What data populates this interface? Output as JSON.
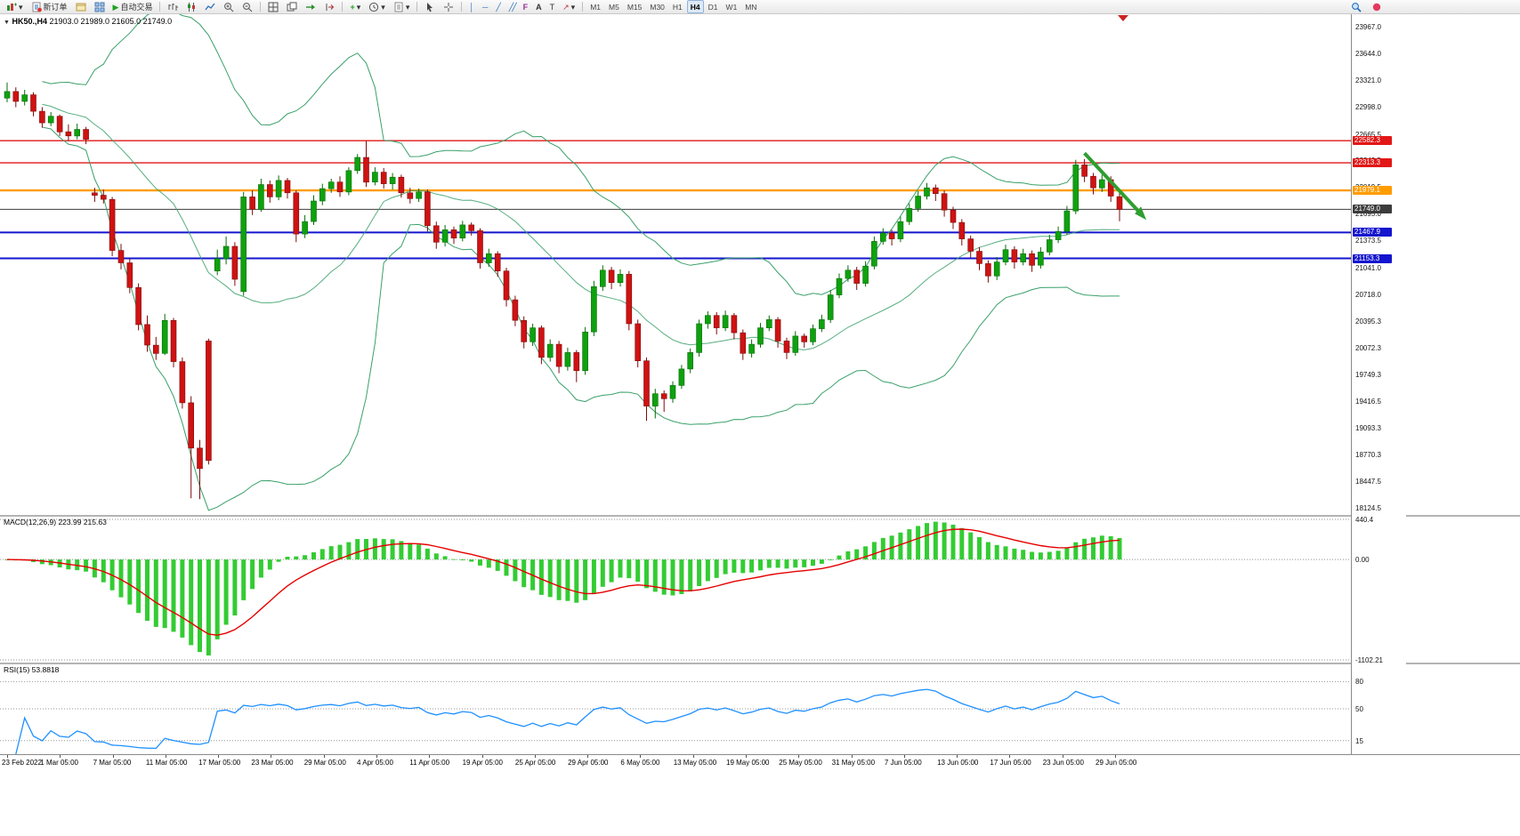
{
  "toolbar": {
    "new_order_label": "新订单",
    "auto_trading_label": "自动交易",
    "timeframes": [
      "M1",
      "M5",
      "M15",
      "M30",
      "H1",
      "H4",
      "D1",
      "W1",
      "MN"
    ],
    "active_timeframe": "H4",
    "icons": [
      "new-chart",
      "dropdown",
      "new-order",
      "profiles",
      "charts",
      "auto-trading",
      "bar-chart",
      "candlestick-chart",
      "line-chart",
      "zoom-in",
      "zoom-out",
      "tile-windows",
      "cascade-windows",
      "auto-scroll",
      "chart-shift",
      "indicators",
      "periods",
      "templates",
      "cursor",
      "crosshair",
      "vertical-line",
      "horizontal-line",
      "trendline",
      "channel",
      "fibonacci",
      "text",
      "label",
      "arrows",
      "search",
      "record"
    ]
  },
  "chart": {
    "header": {
      "symbol_period": "HK50.,H4",
      "ohlc": "21903.0 21989.0 21605.0 21749.0"
    },
    "price_axis_labels": [
      "23967.0",
      "23644.0",
      "23321.0",
      "22998.0",
      "22665.5",
      "22342.5",
      "22019.5",
      "21695.0",
      "21373.5",
      "21041.0",
      "20718.0",
      "20395.3",
      "20072.3",
      "19749.3",
      "19416.5",
      "19093.3",
      "18770.3",
      "18447.5",
      "18124.5"
    ],
    "levels": [
      {
        "price": 22582.3,
        "label": "22582.3",
        "color": "#e21717",
        "width": 1.4
      },
      {
        "price": 22313.3,
        "label": "22313.3",
        "color": "#e21717",
        "width": 1.4
      },
      {
        "price": 21979.1,
        "label": "21979.1",
        "color": "#ff9c00",
        "width": 2.4
      },
      {
        "price": 21749.0,
        "label": "21749.0",
        "color": "#3c3c3c",
        "width": 1
      },
      {
        "price": 21467.9,
        "label": "21467.9",
        "color": "#1515cf",
        "width": 2
      },
      {
        "price": 21153.3,
        "label": "21153.3",
        "color": "#1515cf",
        "width": 2
      }
    ],
    "time_axis_labels": [
      "23 Feb 2022",
      "1 Mar 05:00",
      "7 Mar 05:00",
      "11 Mar 05:00",
      "17 Mar 05:00",
      "23 Mar 05:00",
      "29 Mar 05:00",
      "4 Apr 05:00",
      "11 Apr 05:00",
      "19 Apr 05:00",
      "25 Apr 05:00",
      "29 Apr 05:00",
      "6 May 05:00",
      "13 May 05:00",
      "19 May 05:00",
      "25 May 05:00",
      "31 May 05:00",
      "7 Jun 05:00",
      "13 Jun 05:00",
      "17 Jun 05:00",
      "23 Jun 05:00",
      "29 Jun 05:00"
    ]
  },
  "macd": {
    "label": "MACD(12,26,9)",
    "value_main": "223.99",
    "value_signal": "215.63",
    "axis": [
      "440.4",
      "0.00",
      "-1102.21"
    ],
    "axis_values": [
      440.4,
      0,
      -1102.21
    ],
    "histogram_color": "#33cc33",
    "signal_color": "#e60000"
  },
  "rsi": {
    "label": "RSI(15)",
    "value": "53.8818",
    "levels": [
      80,
      50,
      15
    ],
    "line_color": "#1e90ff"
  },
  "chart_data": {
    "type": "candlestick",
    "symbol": "HK50",
    "timeframe": "H4",
    "title": "HK50.,H4 21903.0 21989.0 21605.0 21749.0",
    "last_ohlc": {
      "open": 21903.0,
      "high": 21989.0,
      "low": 21605.0,
      "close": 21749.0
    },
    "price_range": [
      18124.5,
      23967.0
    ],
    "bull_color": "#0ea10e",
    "bear_color": "#cf1212",
    "overlays": {
      "bollinger": {
        "period": 20,
        "deviation": 2,
        "color": "#3aa06a"
      }
    },
    "indicators": [
      {
        "type": "MACD",
        "fast": 12,
        "slow": 26,
        "signal": 9,
        "main": 223.99,
        "signal_value": 215.63,
        "axis_max": 440.4,
        "axis_min": -1102.21
      },
      {
        "type": "RSI",
        "period": 15,
        "value": 53.8818,
        "levels": [
          80,
          50,
          15
        ]
      }
    ],
    "horizontal_lines": [
      22582.3,
      22313.3,
      21979.1,
      21749.0,
      21467.9,
      21153.3
    ],
    "annotation": {
      "type": "arrow",
      "direction": "down-right",
      "color": "#2f9e2f",
      "from_price": 22430,
      "to_price": 21620
    },
    "candles": [
      [
        23100,
        23290,
        23050,
        23180
      ],
      [
        23180,
        23230,
        22990,
        23060
      ],
      [
        23060,
        23200,
        23010,
        23140
      ],
      [
        23140,
        23170,
        22880,
        22940
      ],
      [
        22940,
        22990,
        22740,
        22800
      ],
      [
        22800,
        22930,
        22760,
        22880
      ],
      [
        22880,
        22900,
        22640,
        22690
      ],
      [
        22690,
        22780,
        22580,
        22640
      ],
      [
        22640,
        22790,
        22600,
        22720
      ],
      [
        22720,
        22750,
        22540,
        22600
      ],
      [
        21950,
        22010,
        21840,
        21920
      ],
      [
        21920,
        21990,
        21820,
        21870
      ],
      [
        21870,
        21900,
        21180,
        21250
      ],
      [
        21250,
        21330,
        21020,
        21100
      ],
      [
        21100,
        21150,
        20730,
        20800
      ],
      [
        20800,
        20850,
        20280,
        20350
      ],
      [
        20350,
        20460,
        20020,
        20100
      ],
      [
        20100,
        20200,
        19920,
        20000
      ],
      [
        20000,
        20480,
        19980,
        20400
      ],
      [
        20400,
        20430,
        19830,
        19900
      ],
      [
        19900,
        19950,
        19330,
        19400
      ],
      [
        19400,
        19480,
        18240,
        18850
      ],
      [
        18850,
        18950,
        18230,
        18600
      ],
      [
        20150,
        20180,
        18650,
        18700
      ],
      [
        21000,
        21260,
        20950,
        21150
      ],
      [
        21150,
        21420,
        21080,
        21300
      ],
      [
        21300,
        21350,
        20820,
        20900
      ],
      [
        20750,
        21960,
        20700,
        21900
      ],
      [
        21900,
        21980,
        21680,
        21750
      ],
      [
        21750,
        22120,
        21720,
        22050
      ],
      [
        22050,
        22100,
        21830,
        21900
      ],
      [
        21900,
        22160,
        21860,
        22100
      ],
      [
        22100,
        22130,
        21880,
        21950
      ],
      [
        21950,
        21980,
        21350,
        21450
      ],
      [
        21450,
        21680,
        21400,
        21600
      ],
      [
        21600,
        21920,
        21560,
        21850
      ],
      [
        21850,
        22060,
        21800,
        22000
      ],
      [
        22000,
        22120,
        21950,
        22080
      ],
      [
        22080,
        22150,
        21900,
        21960
      ],
      [
        21960,
        22260,
        21920,
        22220
      ],
      [
        22220,
        22420,
        22180,
        22380
      ],
      [
        22380,
        22580,
        22020,
        22080
      ],
      [
        22080,
        22260,
        22040,
        22200
      ],
      [
        22200,
        22250,
        22000,
        22060
      ],
      [
        22060,
        22190,
        21990,
        22140
      ],
      [
        22140,
        22170,
        21890,
        21950
      ],
      [
        21950,
        22010,
        21820,
        21880
      ],
      [
        21880,
        22000,
        21840,
        21960
      ],
      [
        21960,
        21990,
        21480,
        21550
      ],
      [
        21550,
        21600,
        21270,
        21350
      ],
      [
        21350,
        21560,
        21300,
        21500
      ],
      [
        21500,
        21540,
        21330,
        21400
      ],
      [
        21400,
        21610,
        21360,
        21560
      ],
      [
        21560,
        21590,
        21430,
        21490
      ],
      [
        21490,
        21520,
        21030,
        21100
      ],
      [
        21100,
        21270,
        21050,
        21210
      ],
      [
        21210,
        21240,
        20930,
        21000
      ],
      [
        21000,
        21040,
        20570,
        20650
      ],
      [
        20650,
        20700,
        20330,
        20400
      ],
      [
        20400,
        20450,
        20060,
        20140
      ],
      [
        20140,
        20360,
        20090,
        20310
      ],
      [
        20310,
        20340,
        19870,
        19950
      ],
      [
        19950,
        20170,
        19900,
        20110
      ],
      [
        20110,
        20150,
        19760,
        19840
      ],
      [
        19840,
        20070,
        19790,
        20010
      ],
      [
        20010,
        20040,
        19650,
        19790
      ],
      [
        19790,
        20320,
        19740,
        20260
      ],
      [
        20260,
        20880,
        20210,
        20810
      ],
      [
        20810,
        21070,
        20760,
        21010
      ],
      [
        21010,
        21050,
        20780,
        20860
      ],
      [
        20860,
        21020,
        20810,
        20960
      ],
      [
        20960,
        21000,
        20280,
        20360
      ],
      [
        20360,
        20410,
        19830,
        19910
      ],
      [
        19910,
        19950,
        19180,
        19360
      ],
      [
        19360,
        19570,
        19210,
        19510
      ],
      [
        19510,
        19550,
        19290,
        19450
      ],
      [
        19450,
        19660,
        19400,
        19610
      ],
      [
        19610,
        19860,
        19570,
        19810
      ],
      [
        19810,
        20060,
        19760,
        20010
      ],
      [
        20010,
        20410,
        19960,
        20360
      ],
      [
        20360,
        20510,
        20300,
        20460
      ],
      [
        20460,
        20500,
        20230,
        20310
      ],
      [
        20310,
        20520,
        20270,
        20460
      ],
      [
        20460,
        20490,
        20170,
        20250
      ],
      [
        20250,
        20290,
        19920,
        20000
      ],
      [
        20000,
        20170,
        19950,
        20110
      ],
      [
        20110,
        20370,
        20070,
        20310
      ],
      [
        20310,
        20460,
        20270,
        20410
      ],
      [
        20410,
        20440,
        20070,
        20150
      ],
      [
        20150,
        20190,
        19930,
        20010
      ],
      [
        20010,
        20270,
        19970,
        20210
      ],
      [
        20210,
        20240,
        20070,
        20140
      ],
      [
        20140,
        20350,
        20100,
        20300
      ],
      [
        20300,
        20470,
        20260,
        20410
      ],
      [
        20410,
        20770,
        20370,
        20710
      ],
      [
        20710,
        20970,
        20670,
        20910
      ],
      [
        20910,
        21070,
        20870,
        21010
      ],
      [
        21010,
        21050,
        20770,
        20850
      ],
      [
        20850,
        21120,
        20810,
        21060
      ],
      [
        21060,
        21420,
        21020,
        21360
      ],
      [
        21360,
        21520,
        21320,
        21460
      ],
      [
        21460,
        21500,
        21310,
        21390
      ],
      [
        21390,
        21660,
        21350,
        21600
      ],
      [
        21600,
        21820,
        21560,
        21760
      ],
      [
        21760,
        21970,
        21720,
        21910
      ],
      [
        21910,
        22070,
        21870,
        22010
      ],
      [
        22010,
        22050,
        21850,
        21940
      ],
      [
        21940,
        21980,
        21660,
        21740
      ],
      [
        21740,
        21780,
        21510,
        21590
      ],
      [
        21590,
        21630,
        21310,
        21390
      ],
      [
        21390,
        21430,
        21160,
        21240
      ],
      [
        21240,
        21290,
        21010,
        21090
      ],
      [
        21090,
        21130,
        20860,
        20940
      ],
      [
        20940,
        21170,
        20890,
        21110
      ],
      [
        21110,
        21320,
        21070,
        21260
      ],
      [
        21260,
        21300,
        21030,
        21110
      ],
      [
        21110,
        21270,
        21070,
        21210
      ],
      [
        21210,
        21250,
        20990,
        21070
      ],
      [
        21070,
        21290,
        21030,
        21230
      ],
      [
        21230,
        21440,
        21190,
        21380
      ],
      [
        21380,
        21540,
        21340,
        21480
      ],
      [
        21480,
        21790,
        21440,
        21730
      ],
      [
        21730,
        22350,
        21690,
        22290
      ],
      [
        22290,
        22360,
        22080,
        22150
      ],
      [
        22150,
        22190,
        21930,
        22010
      ],
      [
        22010,
        22170,
        21960,
        22110
      ],
      [
        22110,
        22150,
        21840,
        21910
      ],
      [
        21903,
        21989,
        21605,
        21749
      ]
    ]
  }
}
